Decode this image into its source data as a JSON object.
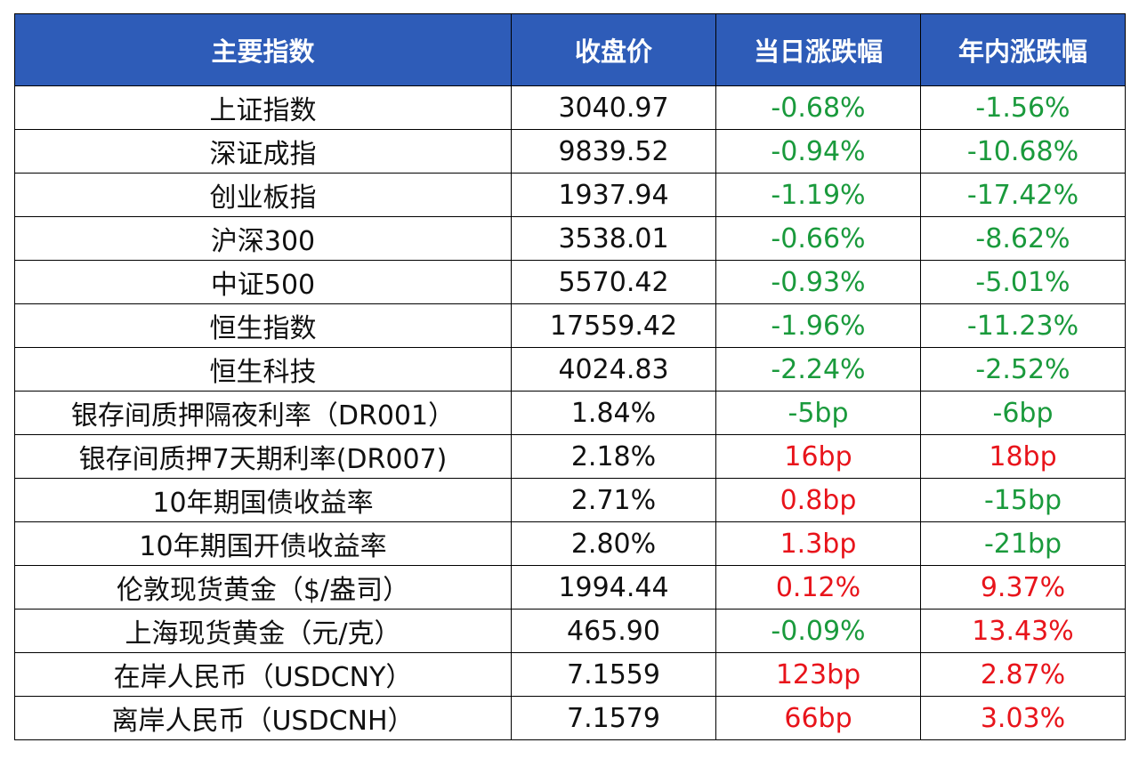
{
  "colors": {
    "header_bg": "#2E5CB8",
    "header_text": "#FFFFFF",
    "negative": "#1A9A3C",
    "positive": "#E8141B"
  },
  "table": {
    "headers": [
      "主要指数",
      "收盘价",
      "当日涨跌幅",
      "年内涨跌幅"
    ],
    "rows": [
      {
        "name": "上证指数",
        "close": "3040.97",
        "daily": "-0.68%",
        "daily_dir": "neg",
        "ytd": "-1.56%",
        "ytd_dir": "neg"
      },
      {
        "name": "深证成指",
        "close": "9839.52",
        "daily": "-0.94%",
        "daily_dir": "neg",
        "ytd": "-10.68%",
        "ytd_dir": "neg"
      },
      {
        "name": "创业板指",
        "close": "1937.94",
        "daily": "-1.19%",
        "daily_dir": "neg",
        "ytd": "-17.42%",
        "ytd_dir": "neg"
      },
      {
        "name": "沪深300",
        "close": "3538.01",
        "daily": "-0.66%",
        "daily_dir": "neg",
        "ytd": "-8.62%",
        "ytd_dir": "neg"
      },
      {
        "name": "中证500",
        "close": "5570.42",
        "daily": "-0.93%",
        "daily_dir": "neg",
        "ytd": "-5.01%",
        "ytd_dir": "neg"
      },
      {
        "name": "恒生指数",
        "close": "17559.42",
        "daily": "-1.96%",
        "daily_dir": "neg",
        "ytd": "-11.23%",
        "ytd_dir": "neg"
      },
      {
        "name": "恒生科技",
        "close": "4024.83",
        "daily": "-2.24%",
        "daily_dir": "neg",
        "ytd": "-2.52%",
        "ytd_dir": "neg"
      },
      {
        "name": "银存间质押隔夜利率（DR001）",
        "close": "1.84%",
        "daily": "-5bp",
        "daily_dir": "neg",
        "ytd": "-6bp",
        "ytd_dir": "neg"
      },
      {
        "name": "银存间质押7天期利率(DR007)",
        "close": "2.18%",
        "daily": "16bp",
        "daily_dir": "pos",
        "ytd": "18bp",
        "ytd_dir": "pos"
      },
      {
        "name": "10年期国债收益率",
        "close": "2.71%",
        "daily": "0.8bp",
        "daily_dir": "pos",
        "ytd": "-15bp",
        "ytd_dir": "neg"
      },
      {
        "name": "10年期国开债收益率",
        "close": "2.80%",
        "daily": "1.3bp",
        "daily_dir": "pos",
        "ytd": "-21bp",
        "ytd_dir": "neg"
      },
      {
        "name": "伦敦现货黄金（$/盎司）",
        "close": "1994.44",
        "daily": "0.12%",
        "daily_dir": "pos",
        "ytd": "9.37%",
        "ytd_dir": "pos"
      },
      {
        "name": "上海现货黄金（元/克）",
        "close": "465.90",
        "daily": "-0.09%",
        "daily_dir": "neg",
        "ytd": "13.43%",
        "ytd_dir": "pos"
      },
      {
        "name": "在岸人民币（USDCNY）",
        "close": "7.1559",
        "daily": "123bp",
        "daily_dir": "pos",
        "ytd": "2.87%",
        "ytd_dir": "pos"
      },
      {
        "name": "离岸人民币（USDCNH）",
        "close": "7.1579",
        "daily": "66bp",
        "daily_dir": "pos",
        "ytd": "3.03%",
        "ytd_dir": "pos"
      }
    ]
  }
}
